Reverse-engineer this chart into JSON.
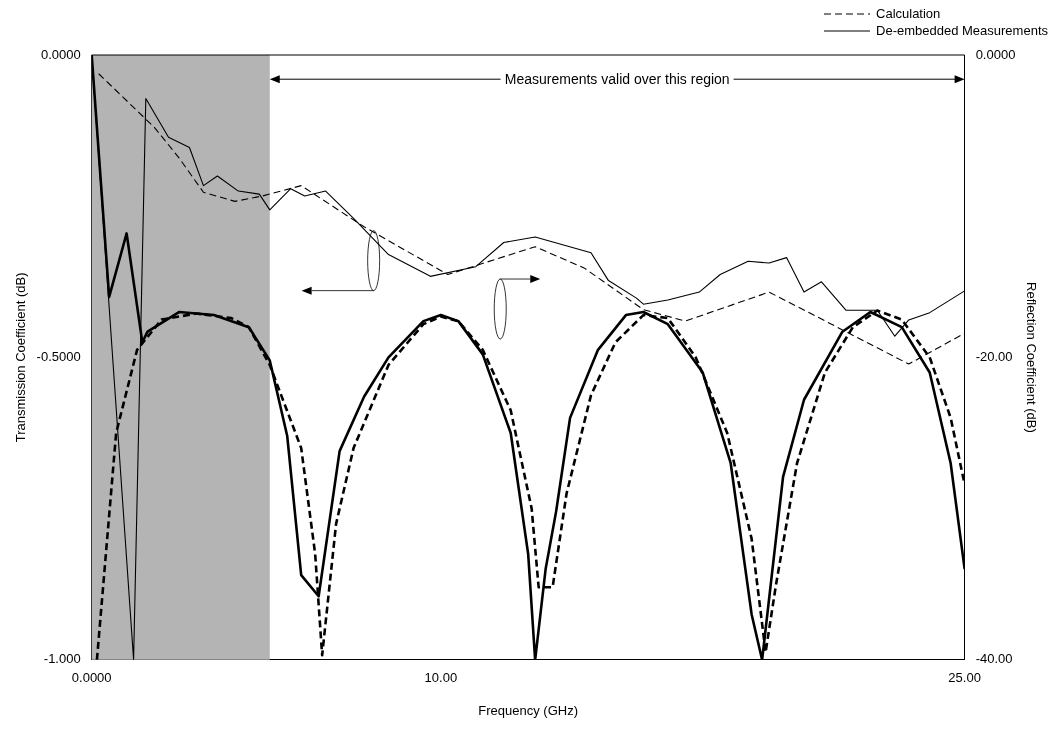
{
  "chart_data": {
    "type": "line",
    "xlabel": "Frequency (GHz)",
    "ylabel": "Transmission Coefficient (dB)",
    "y2label": "Reflection Coefficient (dB)",
    "xlim": [
      0,
      25
    ],
    "xticks": [
      {
        "value": 0,
        "label": "0.0000"
      },
      {
        "value": 10,
        "label": "10.00"
      },
      {
        "value": 25,
        "label": "25.00"
      }
    ],
    "ylim": [
      -1,
      0
    ],
    "yticks": [
      {
        "value": -1,
        "label": "-1.000"
      },
      {
        "value": -0.5,
        "label": "-0.5000"
      },
      {
        "value": 0,
        "label": "0.0000"
      }
    ],
    "y2lim": [
      -40,
      0
    ],
    "y2ticks": [
      {
        "value": -40,
        "label": "-40.00"
      },
      {
        "value": -20,
        "label": "-20.00"
      },
      {
        "value": 0,
        "label": "0.0000"
      }
    ],
    "grid": false,
    "legend": "top right",
    "marker": "none",
    "bands": [
      {
        "axis": "x",
        "from": 0,
        "to": 5.1,
        "color": "#b4b4b4"
      }
    ],
    "annotations": [
      "Measurements valid over this region"
    ],
    "series": [
      {
        "name": "Calculation",
        "color": "#000000",
        "line_style": "dashed",
        "x": [
          0.2,
          1.8,
          2.5,
          3.2,
          4.1,
          4.9,
          6.0,
          7.8,
          10.2,
          12.7,
          14.1,
          15.8,
          17.0,
          19.4,
          23.4,
          25
        ],
        "values": [
          -0.031,
          -0.12,
          -0.17,
          -0.227,
          -0.242,
          -0.233,
          -0.216,
          -0.284,
          -0.363,
          -0.317,
          -0.352,
          -0.421,
          -0.44,
          -0.392,
          -0.511,
          -0.46
        ]
      },
      {
        "name": "De-embedded Measurements",
        "color": "#000000",
        "line_style": "solid",
        "x": [
          0,
          1.2,
          1.55,
          2.2,
          2.8,
          3.2,
          3.6,
          4.2,
          4.8,
          5.1,
          5.7,
          6.1,
          6.7,
          7.5,
          8.5,
          9.7,
          11.0,
          11.8,
          12.7,
          14.3,
          14.8,
          15.6,
          15.8,
          16.5,
          17.4,
          18.0,
          18.8,
          19.4,
          19.9,
          20.4,
          20.9,
          21.6,
          22.5,
          23.0,
          23.4,
          24.0,
          25
        ],
        "values": [
          0,
          -1,
          -0.072,
          -0.136,
          -0.153,
          -0.216,
          -0.2,
          -0.225,
          -0.23,
          -0.256,
          -0.221,
          -0.233,
          -0.225,
          -0.27,
          -0.33,
          -0.366,
          -0.35,
          -0.31,
          -0.301,
          -0.327,
          -0.373,
          -0.402,
          -0.412,
          -0.405,
          -0.392,
          -0.363,
          -0.341,
          -0.344,
          -0.335,
          -0.392,
          -0.375,
          -0.422,
          -0.422,
          -0.465,
          -0.438,
          -0.426,
          -0.39
        ]
      },
      {
        "color": "#000000",
        "line_style": "dashed",
        "axis": "y2",
        "x": [
          0.15,
          0.7,
          1.3,
          2.0,
          3.0,
          4.0,
          4.5,
          5.1,
          6.0,
          6.4,
          6.6,
          7.0,
          7.5,
          8.5,
          9.5,
          10.0,
          10.5,
          11.2,
          12.0,
          12.6,
          12.8,
          13.2,
          13.6,
          14.3,
          15.0,
          15.8,
          16.5,
          17.3,
          18.2,
          18.9,
          19.3,
          19.6,
          20.2,
          21.0,
          21.8,
          22.5,
          23.2,
          24.0,
          24.6,
          25
        ],
        "values": [
          -40,
          -25,
          -19.5,
          -17.5,
          -17.1,
          -17.4,
          -18,
          -20.5,
          -26,
          -33,
          -39.7,
          -31,
          -26,
          -20.5,
          -17.8,
          -17.3,
          -17.6,
          -19.5,
          -23.5,
          -30,
          -35.2,
          -35.2,
          -29,
          -22.5,
          -19,
          -17.2,
          -17.4,
          -20,
          -25,
          -32,
          -39.5,
          -35,
          -27,
          -21,
          -18,
          -16.9,
          -17.5,
          -20,
          -24,
          -28.4
        ]
      },
      {
        "color": "#000000",
        "line_style": "solid",
        "axis": "y2",
        "x": [
          0,
          0.5,
          1.0,
          1.45,
          1.6,
          2.5,
          3.5,
          4.5,
          5.1,
          5.6,
          6.0,
          6.5,
          7.1,
          7.8,
          8.5,
          9.5,
          10.0,
          10.5,
          11.2,
          12.0,
          12.5,
          12.7,
          13.0,
          13.3,
          13.7,
          14.5,
          15.3,
          15.8,
          16.5,
          17.5,
          18.3,
          18.9,
          19.2,
          19.8,
          20.4,
          21.5,
          22.3,
          23.2,
          24.0,
          24.6,
          25
        ],
        "values": [
          0,
          -16,
          -11.8,
          -19,
          -18.3,
          -17,
          -17.2,
          -18,
          -20.2,
          -25.2,
          -34.4,
          -35.8,
          -26.2,
          -22.6,
          -20,
          -17.6,
          -17.2,
          -17.6,
          -19.8,
          -25,
          -33,
          -40,
          -34,
          -30.2,
          -24,
          -19.5,
          -17.2,
          -17,
          -17.8,
          -21,
          -27,
          -37,
          -40,
          -27.9,
          -22.8,
          -18.3,
          -17,
          -18,
          -21,
          -27,
          -34
        ]
      }
    ]
  }
}
